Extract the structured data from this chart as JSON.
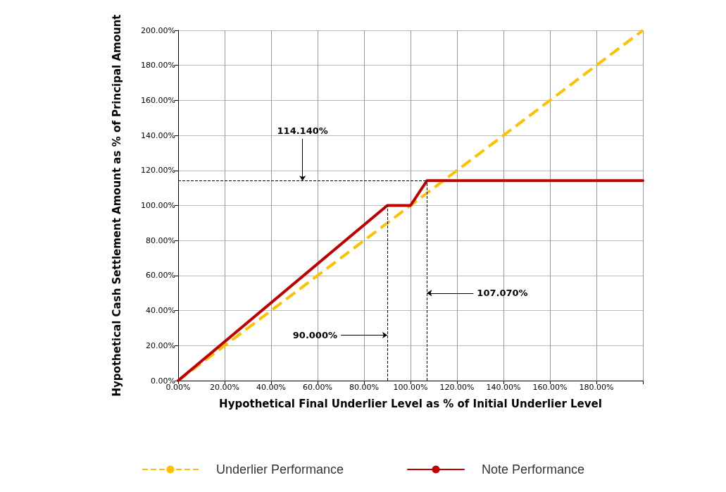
{
  "chart_data": {
    "type": "line",
    "xlabel": "Hypothetical Final Underlier Level as % of Initial Underlier Level",
    "ylabel": "Hypothetical Cash Settlement Amount as % of Principal Amount",
    "xlim": [
      0,
      200
    ],
    "ylim": [
      0,
      200
    ],
    "xticks": [
      {
        "value": 0,
        "label": "0.00%"
      },
      {
        "value": 20,
        "label": "20.00%"
      },
      {
        "value": 40,
        "label": "40.00%"
      },
      {
        "value": 60,
        "label": "60.00%"
      },
      {
        "value": 80,
        "label": "80.00%"
      },
      {
        "value": 100,
        "label": "100.00%"
      },
      {
        "value": 120,
        "label": "120.00%"
      },
      {
        "value": 140,
        "label": "140.00%"
      },
      {
        "value": 160,
        "label": "160.00%"
      },
      {
        "value": 180,
        "label": "180.00%"
      },
      {
        "value": 200,
        "label": null
      }
    ],
    "yticks": [
      {
        "value": 0,
        "label": "0.00%"
      },
      {
        "value": 20,
        "label": "20.00%"
      },
      {
        "value": 40,
        "label": "40.00%"
      },
      {
        "value": 60,
        "label": "60.00%"
      },
      {
        "value": 80,
        "label": "80.00%"
      },
      {
        "value": 100,
        "label": "100.00%"
      },
      {
        "value": 120,
        "label": "120.00%"
      },
      {
        "value": 140,
        "label": "140.00%"
      },
      {
        "value": 160,
        "label": "160.00%"
      },
      {
        "value": 180,
        "label": "180.00%"
      },
      {
        "value": 200,
        "label": "200.00%"
      }
    ],
    "grid": true,
    "legend": "bottom",
    "marker": "none",
    "series": [
      {
        "name": "Underlier Performance",
        "color": "#ffc000",
        "line_style": "dashed",
        "x": [
          0,
          200
        ],
        "values": [
          0,
          200
        ]
      },
      {
        "name": "Note Performance",
        "color": "#c00000",
        "line_style": "solid",
        "x": [
          0,
          90,
          100,
          107.07,
          200
        ],
        "values": [
          0,
          100,
          100,
          114.14,
          114.14
        ]
      }
    ],
    "ref_lines": [
      {
        "axis": "y",
        "value": 114.14,
        "label": "114.140%",
        "color": "#000000",
        "line_style": "dashed"
      },
      {
        "axis": "x",
        "value": 90,
        "label": "90.000%",
        "color": "#000000",
        "line_style": "dashed"
      },
      {
        "axis": "x",
        "value": 107.07,
        "label": "107.070%",
        "color": "#000000",
        "line_style": "dashed"
      }
    ]
  }
}
